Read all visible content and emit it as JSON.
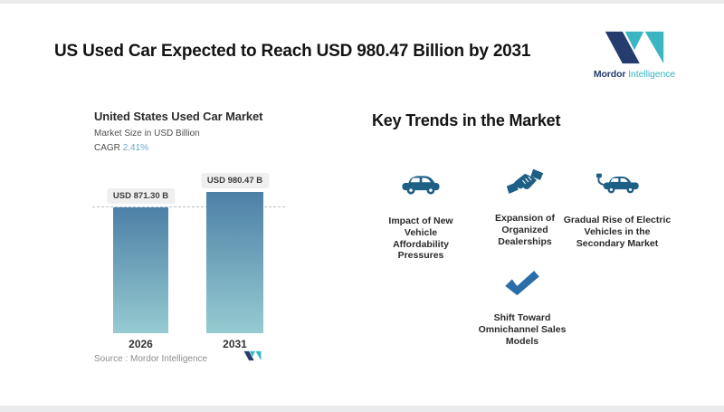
{
  "header": {
    "title": "US Used Car Expected to Reach USD 980.47 Billion by 2031"
  },
  "logo": {
    "name_bold": "Mordor",
    "name_light": "Intelligence"
  },
  "chart": {
    "title": "United States Used Car Market",
    "subtitle": "Market Size in USD Billion",
    "cagr_label": "CAGR",
    "cagr_value": "2.41%",
    "source_label": "Source :",
    "source_value": "Mordor Intelligence"
  },
  "chart_data": {
    "type": "bar",
    "title": "United States Used Car Market",
    "ylabel": "Market Size in USD Billion",
    "categories": [
      "2026",
      "2031"
    ],
    "values": [
      871.3,
      980.47
    ],
    "data_labels": [
      "USD 871.30 B",
      "USD 980.47 B"
    ],
    "cagr_percent": 2.41,
    "reference_line": 871.3,
    "source": "Mordor Intelligence",
    "legend": "none",
    "grid": "off"
  },
  "trends": {
    "title": "Key Trends in the Market",
    "items": [
      {
        "icon": "car-icon",
        "label": "Impact of New Vehicle Affordability Pressures"
      },
      {
        "icon": "handshake-icon",
        "label": "Expansion of Organized Dealerships"
      },
      {
        "icon": "electric-car-icon",
        "label": "Gradual Rise of Electric Vehicles in the Secondary Market"
      },
      {
        "icon": "check-icon",
        "label": "Shift Toward Omnichannel Sales Models"
      }
    ]
  },
  "colors": {
    "brand_navy": "#253c6e",
    "accent_teal": "#3ab5c2",
    "icon_blue": "#1e5f86",
    "check_blue": "#2a6da8",
    "cagr_blue": "#6aa9cd",
    "bar_top": "#4d80a6",
    "bar_bottom": "#96cbd2"
  }
}
